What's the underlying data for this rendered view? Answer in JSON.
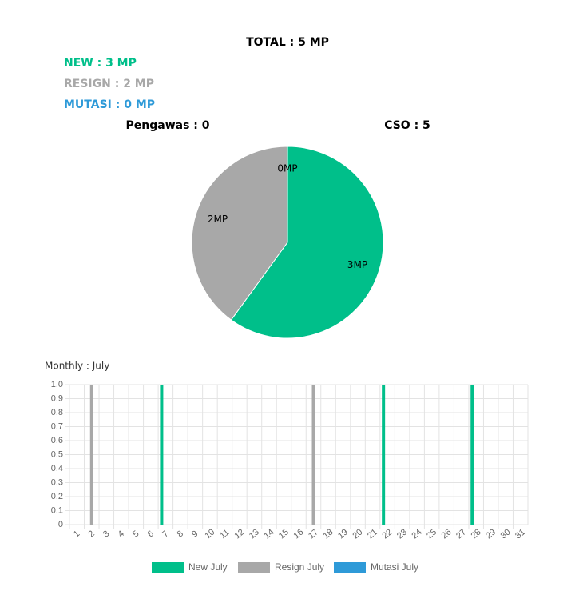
{
  "summary": {
    "total": "TOTAL : 5 MP",
    "new": "NEW : 3 MP",
    "resign": "RESIGN : 2 MP",
    "mutasi": "MUTASI : 0 MP",
    "pengawas": "Pengawas : 0",
    "cso": "CSO : 5"
  },
  "chart_data": [
    {
      "type": "pie",
      "values": [
        3,
        2,
        0
      ],
      "value_labels": [
        "3MP",
        "2MP",
        "0MP"
      ],
      "colors": [
        "#00bf8a",
        "#a8a8a8",
        "#2e9ad8"
      ]
    },
    {
      "type": "bar",
      "title": "Monthly : July",
      "categories": [
        "1",
        "2",
        "3",
        "4",
        "5",
        "6",
        "7",
        "8",
        "9",
        "10",
        "11",
        "12",
        "13",
        "14",
        "15",
        "16",
        "17",
        "18",
        "19",
        "20",
        "21",
        "22",
        "23",
        "24",
        "25",
        "26",
        "27",
        "28",
        "29",
        "30",
        "31"
      ],
      "series": [
        {
          "name": "New July",
          "color": "#00bf8a",
          "values": [
            0,
            0,
            0,
            0,
            0,
            0,
            1,
            0,
            0,
            0,
            0,
            0,
            0,
            0,
            0,
            0,
            0,
            0,
            0,
            0,
            0,
            1,
            0,
            0,
            0,
            0,
            0,
            1,
            0,
            0,
            0
          ]
        },
        {
          "name": "Resign July",
          "color": "#a8a8a8",
          "values": [
            0,
            1,
            0,
            0,
            0,
            0,
            0,
            0,
            0,
            0,
            0,
            0,
            0,
            0,
            0,
            0,
            1,
            0,
            0,
            0,
            0,
            0,
            0,
            0,
            0,
            0,
            0,
            0,
            0,
            0,
            0
          ]
        },
        {
          "name": "Mutasi July",
          "color": "#2e9ad8",
          "values": [
            0,
            0,
            0,
            0,
            0,
            0,
            0,
            0,
            0,
            0,
            0,
            0,
            0,
            0,
            0,
            0,
            0,
            0,
            0,
            0,
            0,
            0,
            0,
            0,
            0,
            0,
            0,
            0,
            0,
            0,
            0
          ]
        }
      ],
      "ylim": [
        0,
        1
      ],
      "yticks": [
        0,
        0.1,
        0.2,
        0.3,
        0.4,
        0.5,
        0.6,
        0.7,
        0.8,
        0.9,
        {
          "value": 1,
          "label": "1.0"
        }
      ],
      "grid": true,
      "legend": "bottom"
    }
  ]
}
